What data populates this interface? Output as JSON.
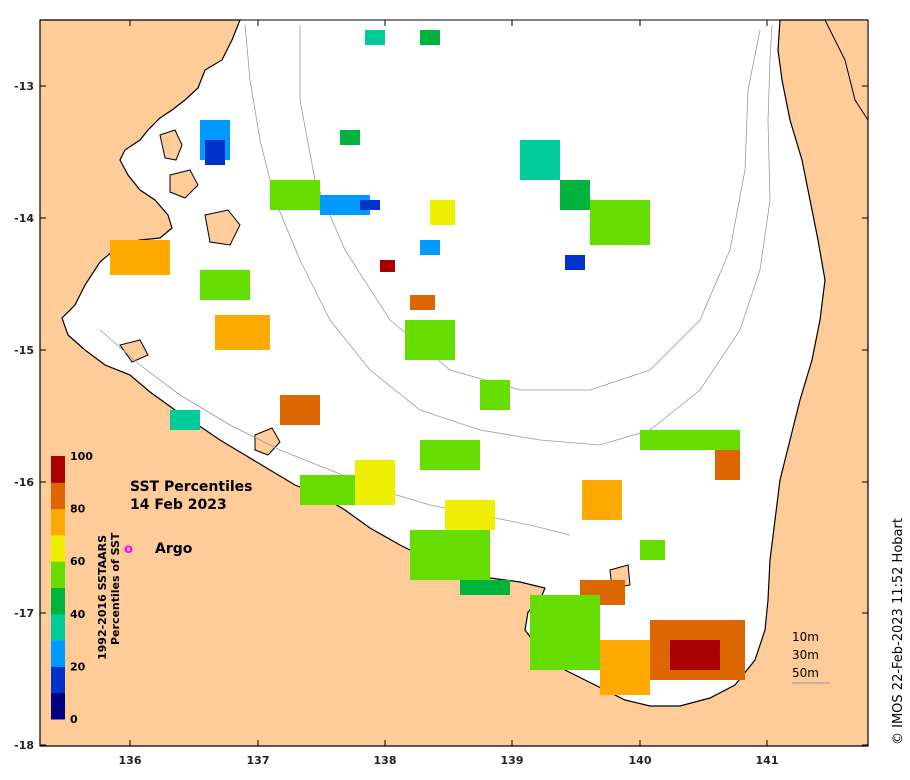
{
  "map": {
    "title": "SST Percentiles",
    "date": "14 Feb 2023",
    "credit": "© IMOS 22-Feb-2023 11:52 Hobart",
    "land_color": "#ffcc99",
    "sea_color": "#ffffff",
    "x_ticks": [
      "136",
      "137",
      "138",
      "139",
      "140",
      "141"
    ],
    "y_ticks": [
      "-13",
      "-14",
      "-15",
      "-16",
      "-17",
      "-18"
    ],
    "legend": {
      "argo_symbol": "o",
      "argo_label": "Argo",
      "argo_color": "#ff00ff"
    },
    "depth_legend": [
      "10m",
      "30m",
      "50m"
    ],
    "colorbar": {
      "title_line1": "1992-2016 SSTAARS",
      "title_line2": "Percentiles of SST",
      "tick_labels": [
        "0",
        "20",
        "40",
        "60",
        "80",
        "100"
      ],
      "colors": [
        "#00007f",
        "#0033cc",
        "#0099ff",
        "#00cc99",
        "#00b33c",
        "#66dd00",
        "#eeee00",
        "#ffaa00",
        "#dd6600",
        "#aa0000"
      ]
    }
  }
}
